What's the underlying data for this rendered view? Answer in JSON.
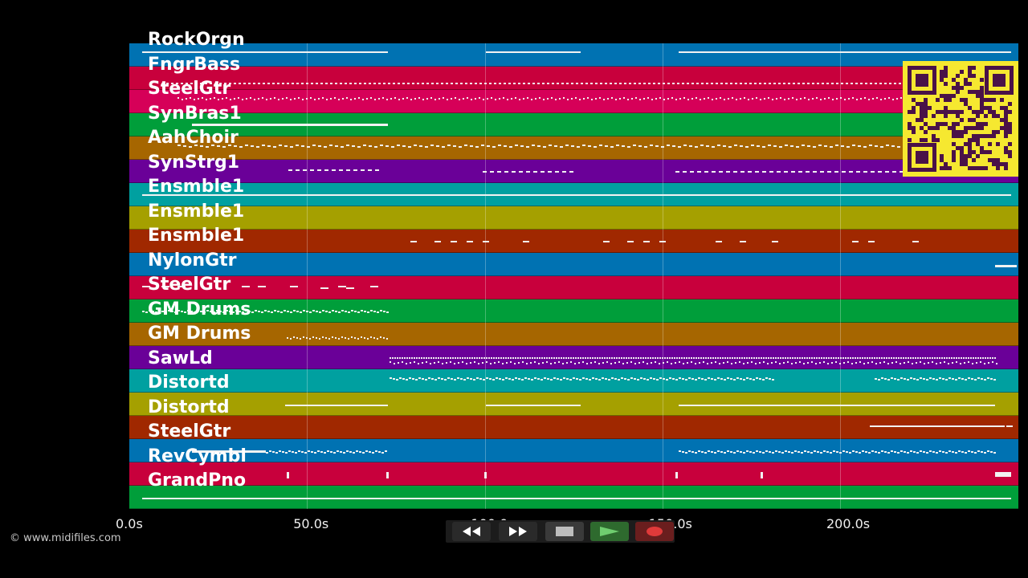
{
  "tracks": [
    {
      "name": "RockOrgn",
      "color": "#0072b2"
    },
    {
      "name": "FngrBass",
      "color": "#c8003c"
    },
    {
      "name": "SteelGtr",
      "color": "#d60058"
    },
    {
      "name": "SynBras1",
      "color": "#009e3a"
    },
    {
      "name": "AahChoir",
      "color": "#a66600"
    },
    {
      "name": "SynStrg1",
      "color": "#6a0098"
    },
    {
      "name": "Ensmble1",
      "color": "#00a0a0"
    },
    {
      "name": "Ensmble1",
      "color": "#a5a000"
    },
    {
      "name": "Ensmble1",
      "color": "#a02800"
    },
    {
      "name": "NylonGtr",
      "color": "#0072b2"
    },
    {
      "name": "SteelGtr",
      "color": "#c8003c"
    },
    {
      "name": "GM Drums",
      "color": "#009e3a"
    },
    {
      "name": "GM Drums",
      "color": "#a66600"
    },
    {
      "name": "SawLd",
      "color": "#6a0098"
    },
    {
      "name": "Distortd",
      "color": "#00a0a0"
    },
    {
      "name": "Distortd",
      "color": "#a5a000"
    },
    {
      "name": "SteelGtr",
      "color": "#a02800"
    },
    {
      "name": "RevCymbl",
      "color": "#0072b2"
    },
    {
      "name": "GrandPno",
      "color": "#c8003c"
    },
    {
      "name": "",
      "color": "#009e3a"
    }
  ],
  "time_axis": {
    "unit": "s",
    "max_seconds": 250,
    "ticks": [
      "0.0s",
      "50.0s",
      "100.0s",
      "150.0s",
      "200.0s"
    ],
    "tick_values": [
      0,
      50,
      100,
      150,
      200
    ]
  },
  "transport": {
    "buttons": [
      {
        "name": "rewind-icon",
        "color": "#2a2a2a"
      },
      {
        "name": "fast-forward-icon",
        "color": "#2a2a2a"
      },
      {
        "name": "stop-icon",
        "color": "#3a3a3a"
      },
      {
        "name": "play-icon",
        "color": "#2e6a2e"
      },
      {
        "name": "record-icon",
        "color": "#6a1e1e"
      }
    ]
  },
  "credit": "© www.midifiles.com",
  "qr": {
    "icon": "qr-code-icon",
    "fg": "#4a1248",
    "bg": "#f6e830"
  }
}
